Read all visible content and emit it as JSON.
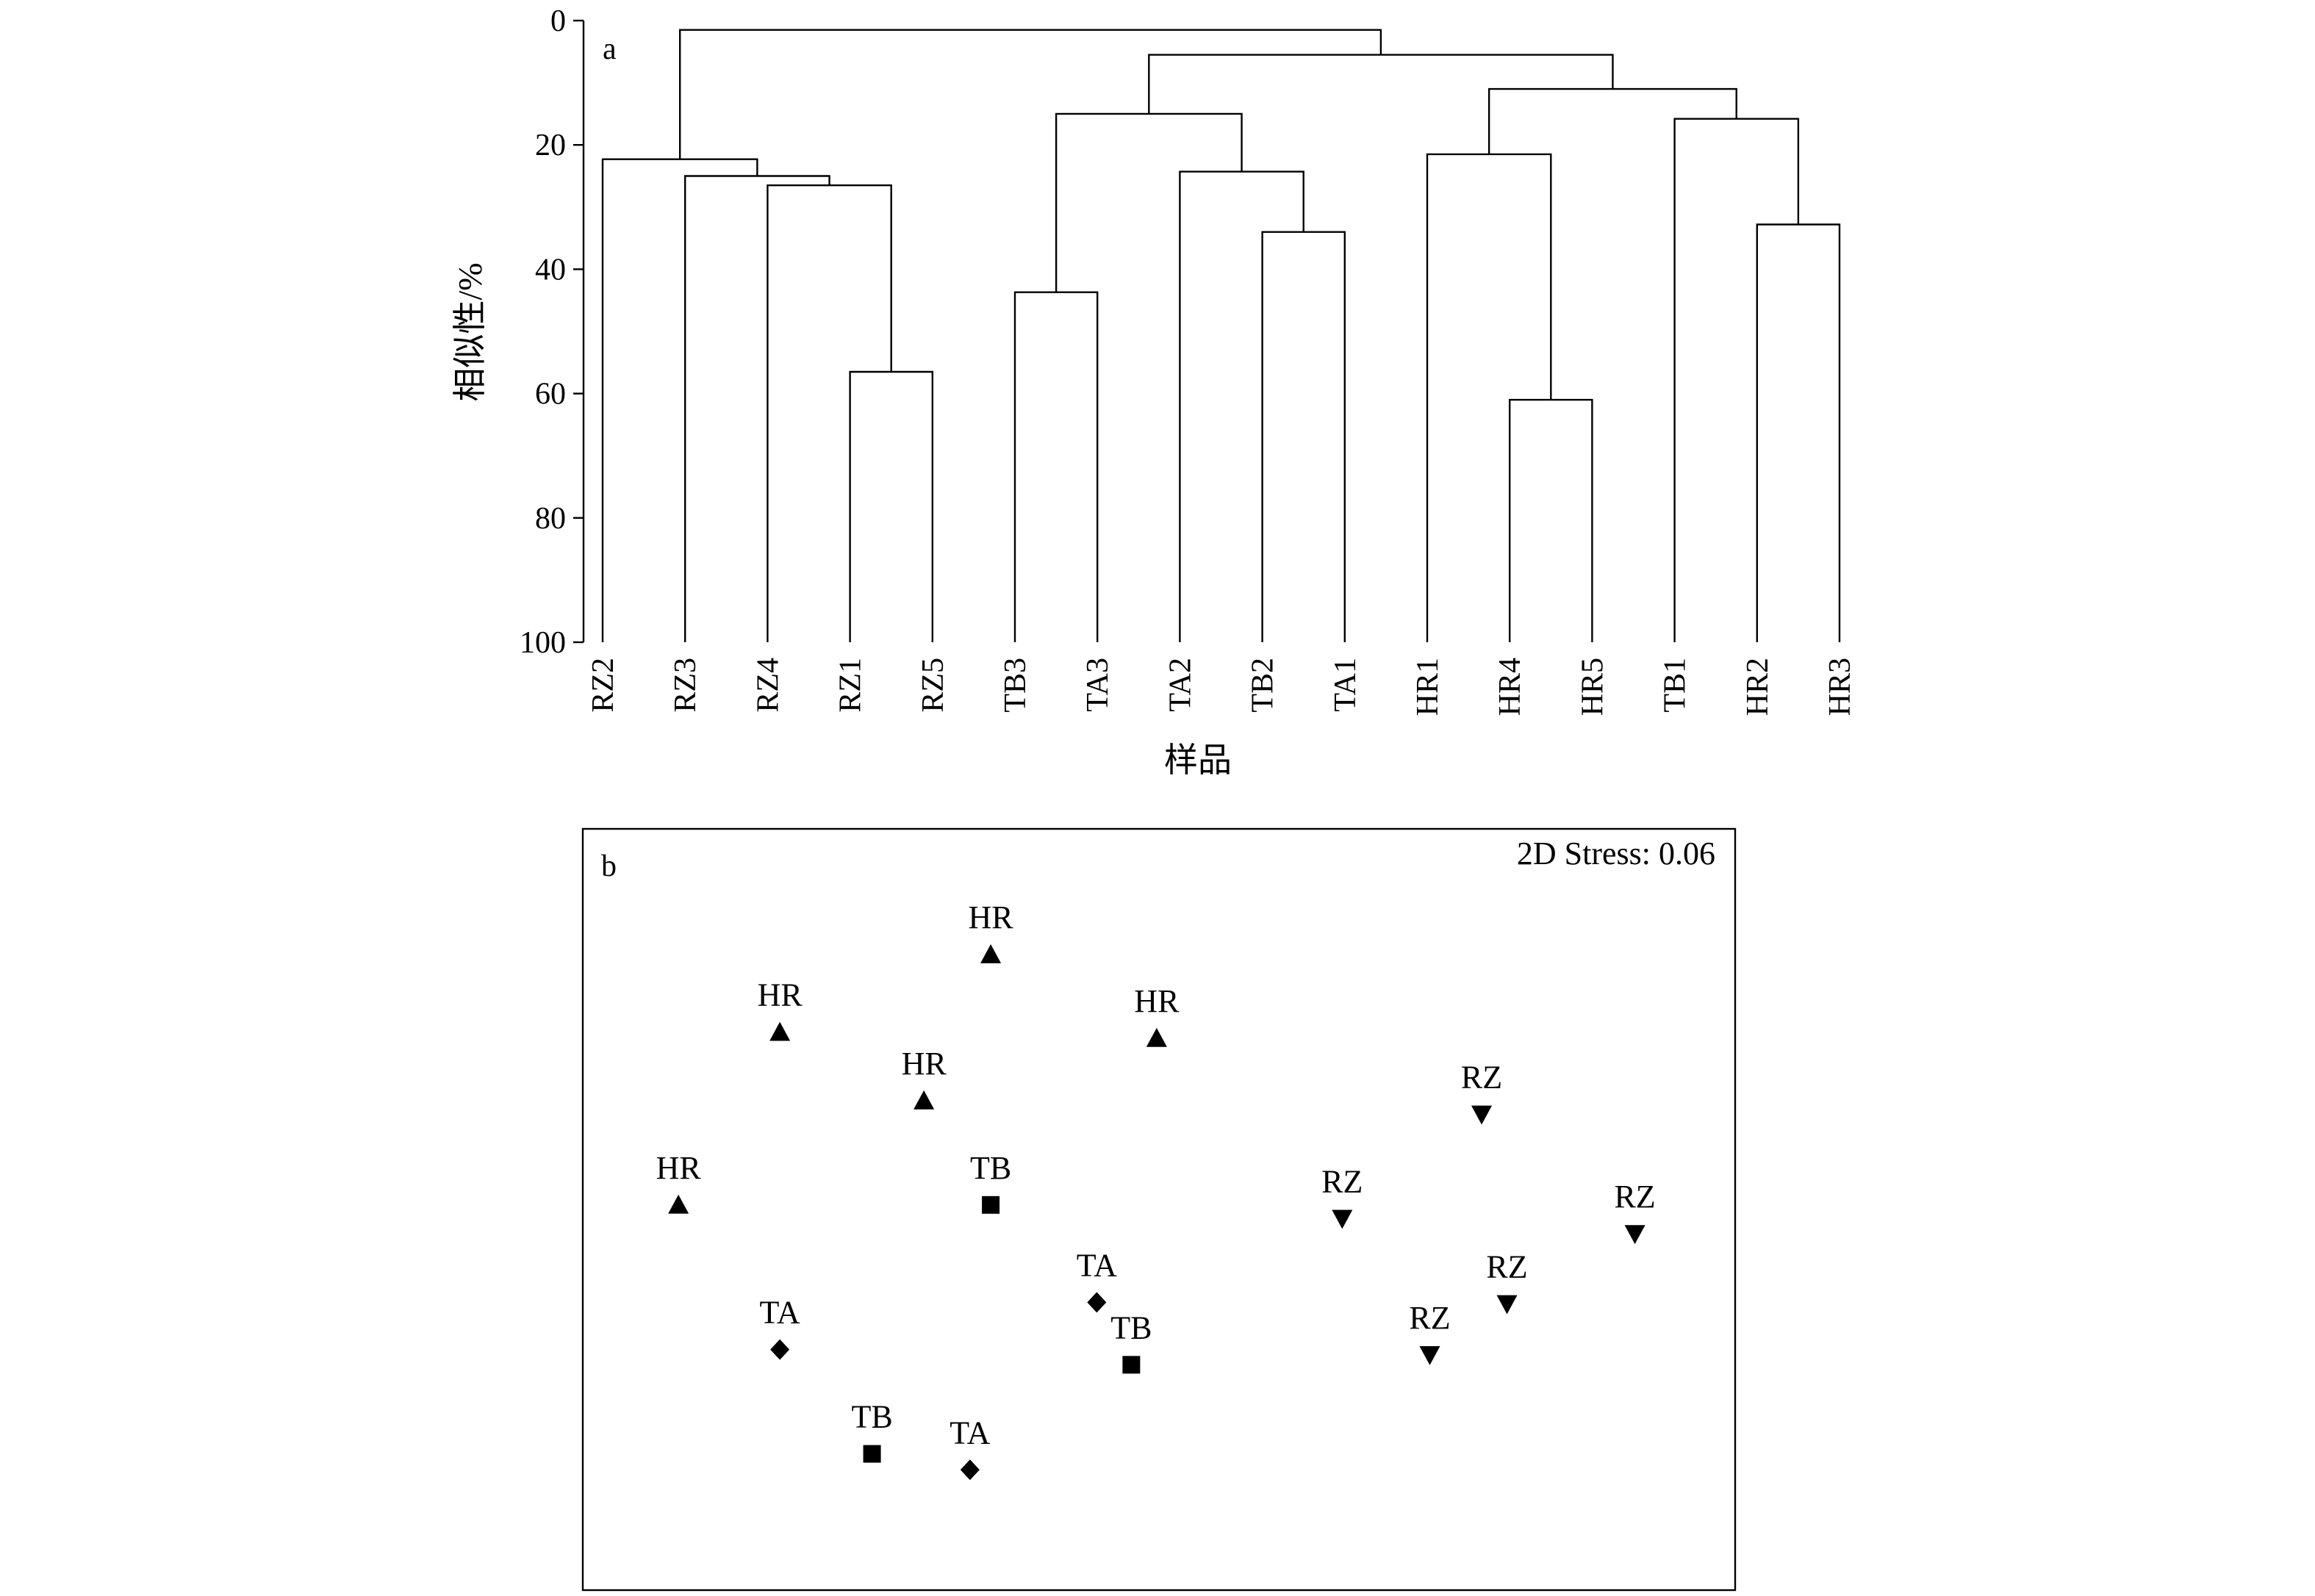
{
  "chart_data": [
    {
      "type": "dendrogram",
      "panel_label": "a",
      "ylabel": "相似性/%",
      "xlabel": "样品",
      "yticks": [
        0,
        20,
        40,
        60,
        80,
        100
      ],
      "ylim": [
        0,
        100
      ],
      "y_inverted": true,
      "leaves": [
        "RZ2",
        "RZ3",
        "RZ4",
        "RZ1",
        "RZ5",
        "TB3",
        "TA3",
        "TA2",
        "TB2",
        "TA1",
        "HR1",
        "HR4",
        "HR5",
        "TB1",
        "HR2",
        "HR3"
      ],
      "merges": [
        {
          "id": "c1",
          "children": [
            "RZ1",
            "RZ5"
          ],
          "similarity": 56.5
        },
        {
          "id": "c2",
          "children": [
            "RZ4",
            "c1"
          ],
          "similarity": 26.5
        },
        {
          "id": "c3",
          "children": [
            "RZ3",
            "c2"
          ],
          "similarity": 25
        },
        {
          "id": "c4",
          "children": [
            "RZ2",
            "c3"
          ],
          "similarity": 22.3
        },
        {
          "id": "c5",
          "children": [
            "TB3",
            "TA3"
          ],
          "similarity": 43.7
        },
        {
          "id": "c6",
          "children": [
            "TB2",
            "TA1"
          ],
          "similarity": 34
        },
        {
          "id": "c7",
          "children": [
            "TA2",
            "c6"
          ],
          "similarity": 24.3
        },
        {
          "id": "c8",
          "children": [
            "c5",
            "c7"
          ],
          "similarity": 15
        },
        {
          "id": "c9",
          "children": [
            "HR4",
            "HR5"
          ],
          "similarity": 61
        },
        {
          "id": "c10",
          "children": [
            "HR1",
            "c9"
          ],
          "similarity": 21.5
        },
        {
          "id": "c11",
          "children": [
            "HR2",
            "HR3"
          ],
          "similarity": 32.8
        },
        {
          "id": "c12",
          "children": [
            "TB1",
            "c11"
          ],
          "similarity": 15.8
        },
        {
          "id": "c13",
          "children": [
            "c10",
            "c12"
          ],
          "similarity": 11
        },
        {
          "id": "c14",
          "children": [
            "c8",
            "c13"
          ],
          "similarity": 5.5
        },
        {
          "id": "c15",
          "children": [
            "c4",
            "c14"
          ],
          "similarity": 1.5
        }
      ]
    },
    {
      "type": "scatter",
      "panel_label": "b",
      "annotation": "2D Stress: 0.06",
      "xlim": [
        0,
        100
      ],
      "ylim": [
        0,
        100
      ],
      "points": [
        {
          "label": "HR",
          "shape": "triangle-up",
          "x": 35.4,
          "y": 83.5
        },
        {
          "label": "HR",
          "shape": "triangle-up",
          "x": 17.1,
          "y": 73.3
        },
        {
          "label": "HR",
          "shape": "triangle-up",
          "x": 49.8,
          "y": 72.5
        },
        {
          "label": "HR",
          "shape": "triangle-up",
          "x": 29.6,
          "y": 64.3
        },
        {
          "label": "HR",
          "shape": "triangle-up",
          "x": 8.3,
          "y": 50.6
        },
        {
          "label": "TB",
          "shape": "square",
          "x": 35.4,
          "y": 50.6
        },
        {
          "label": "TA",
          "shape": "diamond",
          "x": 44.6,
          "y": 37.8
        },
        {
          "label": "TB",
          "shape": "square",
          "x": 47.6,
          "y": 29.6
        },
        {
          "label": "TA",
          "shape": "diamond",
          "x": 17.1,
          "y": 31.6
        },
        {
          "label": "TB",
          "shape": "square",
          "x": 25.1,
          "y": 17.9
        },
        {
          "label": "TA",
          "shape": "diamond",
          "x": 33.6,
          "y": 15.8
        },
        {
          "label": "RZ",
          "shape": "triangle-down",
          "x": 78.0,
          "y": 62.5
        },
        {
          "label": "RZ",
          "shape": "triangle-down",
          "x": 65.9,
          "y": 48.8
        },
        {
          "label": "RZ",
          "shape": "triangle-down",
          "x": 91.3,
          "y": 46.8
        },
        {
          "label": "RZ",
          "shape": "triangle-down",
          "x": 80.2,
          "y": 37.6
        },
        {
          "label": "RZ",
          "shape": "triangle-down",
          "x": 73.5,
          "y": 30.9
        }
      ]
    }
  ]
}
